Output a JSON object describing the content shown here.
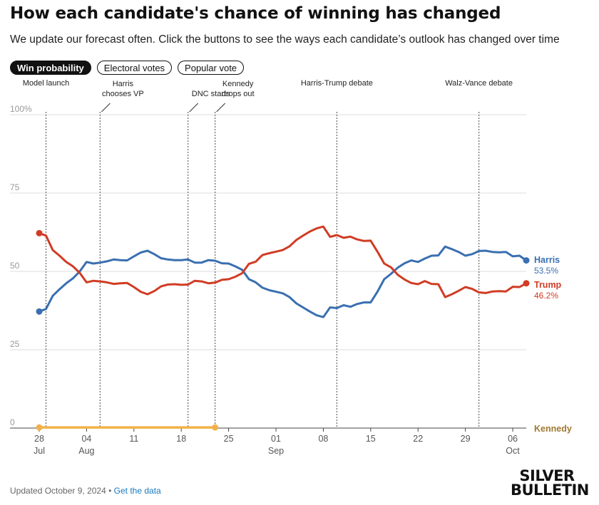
{
  "header": {
    "title": "How each candidate's chance of winning has changed",
    "subtitle": "We update our forecast often. Click the buttons to see the ways each candidate’s outlook has changed over time"
  },
  "tabs": [
    {
      "label": "Win probability",
      "active": true
    },
    {
      "label": "Electoral votes",
      "active": false
    },
    {
      "label": "Popular vote",
      "active": false
    }
  ],
  "footer": {
    "updated": "Updated October 9, 2024",
    "separator": "•",
    "link": "Get the data"
  },
  "brand": {
    "line1": "SILVER",
    "line2": "BULLETIN"
  },
  "colors": {
    "harris": "#3a6fb0",
    "trump": "#d03c24",
    "kennedy": "#f2b24a",
    "kennedy_label": "#a07830",
    "grid": "#dddddd"
  },
  "chart_data": {
    "type": "line",
    "title": "",
    "xlabel": "",
    "ylabel": "",
    "ylim": [
      0,
      100
    ],
    "yticks": [
      0,
      25,
      50,
      75,
      100
    ],
    "ytick_labels": [
      "0",
      "25",
      "50",
      "75",
      "100%"
    ],
    "xlim": [
      "2024-07-28",
      "2024-10-08"
    ],
    "xticks": [
      {
        "date": "2024-07-28",
        "day": "28",
        "month": "Jul"
      },
      {
        "date": "2024-08-04",
        "day": "04",
        "month": "Aug"
      },
      {
        "date": "2024-08-11",
        "day": "11",
        "month": ""
      },
      {
        "date": "2024-08-18",
        "day": "18",
        "month": ""
      },
      {
        "date": "2024-08-25",
        "day": "25",
        "month": ""
      },
      {
        "date": "2024-09-01",
        "day": "01",
        "month": "Sep"
      },
      {
        "date": "2024-09-08",
        "day": "08",
        "month": ""
      },
      {
        "date": "2024-09-15",
        "day": "15",
        "month": ""
      },
      {
        "date": "2024-09-22",
        "day": "22",
        "month": ""
      },
      {
        "date": "2024-09-29",
        "day": "29",
        "month": ""
      },
      {
        "date": "2024-10-06",
        "day": "06",
        "month": "Oct"
      }
    ],
    "grid": true,
    "events": [
      {
        "date": "2024-07-29",
        "label": "Model launch"
      },
      {
        "date": "2024-08-06",
        "label": "Harris\nchooses VP"
      },
      {
        "date": "2024-08-19",
        "label": "DNC starts"
      },
      {
        "date": "2024-08-23",
        "label": "Kennedy\ndrops out"
      },
      {
        "date": "2024-09-10",
        "label": "Harris-Trump debate"
      },
      {
        "date": "2024-10-01",
        "label": "Walz-Vance debate"
      }
    ],
    "series": [
      {
        "name": "Harris",
        "end_label": "53.5%",
        "x": [
          "2024-07-28",
          "2024-07-29",
          "2024-07-30",
          "2024-07-31",
          "2024-08-01",
          "2024-08-02",
          "2024-08-03",
          "2024-08-04",
          "2024-08-05",
          "2024-08-06",
          "2024-08-07",
          "2024-08-08",
          "2024-08-09",
          "2024-08-10",
          "2024-08-11",
          "2024-08-12",
          "2024-08-13",
          "2024-08-14",
          "2024-08-15",
          "2024-08-16",
          "2024-08-17",
          "2024-08-18",
          "2024-08-19",
          "2024-08-20",
          "2024-08-21",
          "2024-08-22",
          "2024-08-23",
          "2024-08-24",
          "2024-08-25",
          "2024-08-26",
          "2024-08-27",
          "2024-08-28",
          "2024-08-29",
          "2024-08-30",
          "2024-08-31",
          "2024-09-01",
          "2024-09-02",
          "2024-09-03",
          "2024-09-04",
          "2024-09-05",
          "2024-09-06",
          "2024-09-07",
          "2024-09-08",
          "2024-09-09",
          "2024-09-10",
          "2024-09-11",
          "2024-09-12",
          "2024-09-13",
          "2024-09-14",
          "2024-09-15",
          "2024-09-16",
          "2024-09-17",
          "2024-09-18",
          "2024-09-19",
          "2024-09-20",
          "2024-09-21",
          "2024-09-22",
          "2024-09-23",
          "2024-09-24",
          "2024-09-25",
          "2024-09-26",
          "2024-09-27",
          "2024-09-28",
          "2024-09-29",
          "2024-09-30",
          "2024-10-01",
          "2024-10-02",
          "2024-10-03",
          "2024-10-04",
          "2024-10-05",
          "2024-10-06",
          "2024-10-07",
          "2024-10-08"
        ],
        "values": [
          37.2,
          38.0,
          42.2,
          44.3,
          46.2,
          47.8,
          50.0,
          53.0,
          52.5,
          52.8,
          53.2,
          53.8,
          53.6,
          53.5,
          54.8,
          56.0,
          56.6,
          55.5,
          54.2,
          53.8,
          53.6,
          53.6,
          53.8,
          52.8,
          52.8,
          53.6,
          53.4,
          52.6,
          52.5,
          51.6,
          50.5,
          47.5,
          46.5,
          44.8,
          44.0,
          43.5,
          43.0,
          41.8,
          39.8,
          38.5,
          37.2,
          36.0,
          35.4,
          38.5,
          38.3,
          39.2,
          38.7,
          39.6,
          40.1,
          40.1,
          43.5,
          47.5,
          49.2,
          51.2,
          52.6,
          53.5,
          53.0,
          54.1,
          55.0,
          55.1,
          57.9,
          57.1,
          56.2,
          55.0,
          55.5,
          56.5,
          56.6,
          56.2,
          56.1,
          56.2,
          54.8,
          55.0,
          53.5
        ]
      },
      {
        "name": "Trump",
        "end_label": "46.2%",
        "x": [
          "2024-07-28",
          "2024-07-29",
          "2024-07-30",
          "2024-07-31",
          "2024-08-01",
          "2024-08-02",
          "2024-08-03",
          "2024-08-04",
          "2024-08-05",
          "2024-08-06",
          "2024-08-07",
          "2024-08-08",
          "2024-08-09",
          "2024-08-10",
          "2024-08-11",
          "2024-08-12",
          "2024-08-13",
          "2024-08-14",
          "2024-08-15",
          "2024-08-16",
          "2024-08-17",
          "2024-08-18",
          "2024-08-19",
          "2024-08-20",
          "2024-08-21",
          "2024-08-22",
          "2024-08-23",
          "2024-08-24",
          "2024-08-25",
          "2024-08-26",
          "2024-08-27",
          "2024-08-28",
          "2024-08-29",
          "2024-08-30",
          "2024-08-31",
          "2024-09-01",
          "2024-09-02",
          "2024-09-03",
          "2024-09-04",
          "2024-09-05",
          "2024-09-06",
          "2024-09-07",
          "2024-09-08",
          "2024-09-09",
          "2024-09-10",
          "2024-09-11",
          "2024-09-12",
          "2024-09-13",
          "2024-09-14",
          "2024-09-15",
          "2024-09-16",
          "2024-09-17",
          "2024-09-18",
          "2024-09-19",
          "2024-09-20",
          "2024-09-21",
          "2024-09-22",
          "2024-09-23",
          "2024-09-24",
          "2024-09-25",
          "2024-09-26",
          "2024-09-27",
          "2024-09-28",
          "2024-09-29",
          "2024-09-30",
          "2024-10-01",
          "2024-10-02",
          "2024-10-03",
          "2024-10-04",
          "2024-10-05",
          "2024-10-06",
          "2024-10-07",
          "2024-10-08"
        ],
        "values": [
          62.2,
          61.4,
          56.8,
          55.0,
          53.0,
          51.6,
          49.5,
          46.5,
          47.0,
          46.8,
          46.5,
          46.0,
          46.2,
          46.3,
          45.0,
          43.5,
          42.7,
          43.7,
          45.2,
          45.8,
          45.9,
          45.7,
          45.8,
          47.0,
          46.8,
          46.2,
          46.4,
          47.3,
          47.5,
          48.3,
          49.4,
          52.4,
          53.1,
          55.2,
          55.8,
          56.3,
          56.8,
          58.0,
          60.0,
          61.4,
          62.7,
          63.7,
          64.3,
          61.0,
          61.6,
          60.7,
          61.1,
          60.2,
          59.7,
          59.8,
          56.3,
          52.5,
          51.3,
          48.9,
          47.4,
          46.3,
          45.9,
          46.9,
          46.0,
          45.9,
          41.8,
          42.7,
          43.8,
          45.0,
          44.4,
          43.3,
          43.1,
          43.6,
          43.7,
          43.6,
          45.1,
          45.0,
          46.2
        ]
      },
      {
        "name": "Kennedy",
        "x": [
          "2024-07-28",
          "2024-08-23"
        ],
        "values": [
          0.2,
          0.2
        ]
      }
    ]
  }
}
